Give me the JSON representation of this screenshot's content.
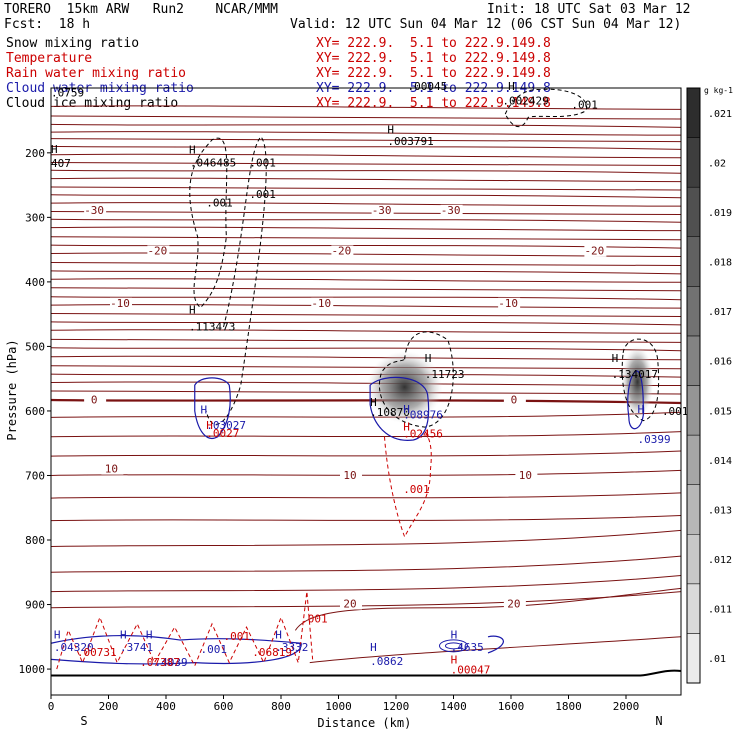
{
  "header": {
    "model": "TORERO  15km ARW   Run2    NCAR/MMM",
    "init": "Init: 18 UTC Sat 03 Mar 12",
    "fcst": "Fcst:  18 h",
    "valid": "Valid: 12 UTC Sun 04 Mar 12 (06 CST Sun 04 Mar 12)"
  },
  "legend": [
    {
      "label": "Snow mixing ratio",
      "xy": "XY= 222.9.  5.1 to 222.9.149.8",
      "color": "#000000"
    },
    {
      "label": "Temperature",
      "xy": "XY= 222.9.  5.1 to 222.9.149.8",
      "color": "#cc0000"
    },
    {
      "label": "Rain water mixing ratio",
      "xy": "XY= 222.9.  5.1 to 222.9.149.8",
      "color": "#cc0000"
    },
    {
      "label": "Cloud water mixing ratio",
      "xy": "XY= 222.9.  5.1 to 222.9.149.8",
      "color": "#1a1aaa"
    },
    {
      "label": "Cloud ice mixing ratio",
      "xy": "XY= 222.9.  5.1 to 222.9.149.8",
      "color": "#000000"
    }
  ],
  "chart_data": {
    "type": "contour cross-section",
    "xlabel": "Distance (km)",
    "ylabel": "Pressure (hPa)",
    "xlim": [
      0,
      2180
    ],
    "ylim": [
      1020,
      100
    ],
    "x_ticks": [
      0,
      200,
      400,
      600,
      800,
      1000,
      1200,
      1400,
      1600,
      1800,
      2000
    ],
    "y_ticks": [
      200,
      300,
      400,
      500,
      600,
      700,
      800,
      900,
      1000
    ],
    "endpoint_labels": {
      "left": "S",
      "right": "N"
    },
    "temperature_labels": [
      {
        "x": 150,
        "p": 293,
        "t": "-30"
      },
      {
        "x": 1150,
        "p": 293,
        "t": "-30"
      },
      {
        "x": 1390,
        "p": 293,
        "t": "-30"
      },
      {
        "x": 370,
        "p": 356,
        "t": "-20"
      },
      {
        "x": 1010,
        "p": 356,
        "t": "-20"
      },
      {
        "x": 1890,
        "p": 356,
        "t": "-20"
      },
      {
        "x": 240,
        "p": 437,
        "t": "-10"
      },
      {
        "x": 940,
        "p": 437,
        "t": "-10"
      },
      {
        "x": 1590,
        "p": 437,
        "t": "-10"
      },
      {
        "x": 150,
        "p": 587,
        "t": "0"
      },
      {
        "x": 1610,
        "p": 587,
        "t": "0"
      },
      {
        "x": 210,
        "p": 694,
        "t": "10"
      },
      {
        "x": 1040,
        "p": 704,
        "t": "10"
      },
      {
        "x": 1650,
        "p": 704,
        "t": "10"
      },
      {
        "x": 1040,
        "p": 903,
        "t": "20"
      },
      {
        "x": 1610,
        "p": 903,
        "t": "20"
      }
    ],
    "maxima_labels": [
      {
        "x": 480,
        "p": 201,
        "t": "H"
      },
      {
        "x": 483,
        "p": 221,
        "t": ".046485"
      },
      {
        "x": 690,
        "p": 221,
        "t": ".001"
      },
      {
        "x": 690,
        "p": 270,
        "t": ".001"
      },
      {
        "x": 540,
        "p": 283,
        "t": ".001"
      },
      {
        "x": 480,
        "p": 449,
        "t": "H"
      },
      {
        "x": 480,
        "p": 475,
        "t": ".113473"
      },
      {
        "x": 1300,
        "p": 524,
        "t": "H"
      },
      {
        "x": 1300,
        "p": 549,
        "t": ".11723"
      },
      {
        "x": 1110,
        "p": 592,
        "t": "H"
      },
      {
        "x": 1110,
        "p": 608,
        "t": ".10870"
      },
      {
        "x": 1950,
        "p": 524,
        "t": "H"
      },
      {
        "x": 1950,
        "p": 549,
        "t": ".134017"
      },
      {
        "x": 1590,
        "p": 103,
        "t": "H"
      },
      {
        "x": 1570,
        "p": 125,
        "t": ".002429"
      },
      {
        "x": 1810,
        "p": 131,
        "t": ".001"
      },
      {
        "x": 1170,
        "p": 170,
        "t": "H"
      },
      {
        "x": 1170,
        "p": 188,
        "t": ".003791"
      },
      {
        "x": 0,
        "p": 200,
        "t": "H"
      },
      {
        "x": 0,
        "p": 222,
        "t": "407"
      },
      {
        "x": 0,
        "p": 113,
        "t": ".0759"
      },
      {
        "x": 1240,
        "p": 103,
        "t": ".00045"
      },
      {
        "x": 2125,
        "p": 606,
        "t": ".001"
      }
    ],
    "cloud_water_labels": [
      {
        "x": 520,
        "p": 604,
        "t": "H"
      },
      {
        "x": 540,
        "p": 628,
        "t": ".03027"
      },
      {
        "x": 1225,
        "p": 603,
        "t": "H"
      },
      {
        "x": 1225,
        "p": 612,
        "t": ".08976"
      },
      {
        "x": 2040,
        "p": 603,
        "t": "H"
      },
      {
        "x": 2040,
        "p": 650,
        "t": ".0399"
      },
      {
        "x": 10,
        "p": 953,
        "t": "H"
      },
      {
        "x": 10,
        "p": 972,
        "t": ".04320"
      },
      {
        "x": 240,
        "p": 953,
        "t": "H"
      },
      {
        "x": 240,
        "p": 972,
        "t": ".3741"
      },
      {
        "x": 330,
        "p": 953,
        "t": "H"
      },
      {
        "x": 360,
        "p": 995,
        "t": ".4039"
      },
      {
        "x": 780,
        "p": 953,
        "t": "H"
      },
      {
        "x": 780,
        "p": 972,
        "t": ".3332"
      },
      {
        "x": 1110,
        "p": 972,
        "t": "H"
      },
      {
        "x": 1110,
        "p": 994,
        "t": ".0862"
      },
      {
        "x": 1390,
        "p": 953,
        "t": "H"
      },
      {
        "x": 1390,
        "p": 972,
        "t": ".4635"
      },
      {
        "x": 520,
        "p": 975,
        "t": ".001"
      }
    ],
    "rain_labels": [
      {
        "x": 540,
        "p": 628,
        "t": "H"
      },
      {
        "x": 540,
        "p": 640,
        "t": ".0027"
      },
      {
        "x": 1225,
        "p": 630,
        "t": "H"
      },
      {
        "x": 1225,
        "p": 641,
        "t": ".02456"
      },
      {
        "x": 1225,
        "p": 727,
        "t": ".001"
      },
      {
        "x": 90,
        "p": 980,
        "t": ".00731"
      },
      {
        "x": 310,
        "p": 995,
        "t": ".07387"
      },
      {
        "x": 700,
        "p": 980,
        "t": ".06819"
      },
      {
        "x": 870,
        "p": 928,
        "t": ".001"
      },
      {
        "x": 600,
        "p": 955,
        "t": ".001"
      },
      {
        "x": 1390,
        "p": 991,
        "t": "H"
      },
      {
        "x": 1390,
        "p": 1007,
        "t": ".00047"
      }
    ],
    "colorbar": {
      "title": "g kg-1",
      "labels": [
        ".01",
        ".011",
        ".012",
        ".013",
        ".014",
        ".015",
        ".016",
        ".017",
        ".018",
        ".019",
        ".02",
        ".021"
      ]
    },
    "shading_maxima": [
      {
        "x": 1230,
        "p": 563,
        "value": 0.021
      },
      {
        "x": 2040,
        "p": 555,
        "value": 0.017
      }
    ]
  }
}
